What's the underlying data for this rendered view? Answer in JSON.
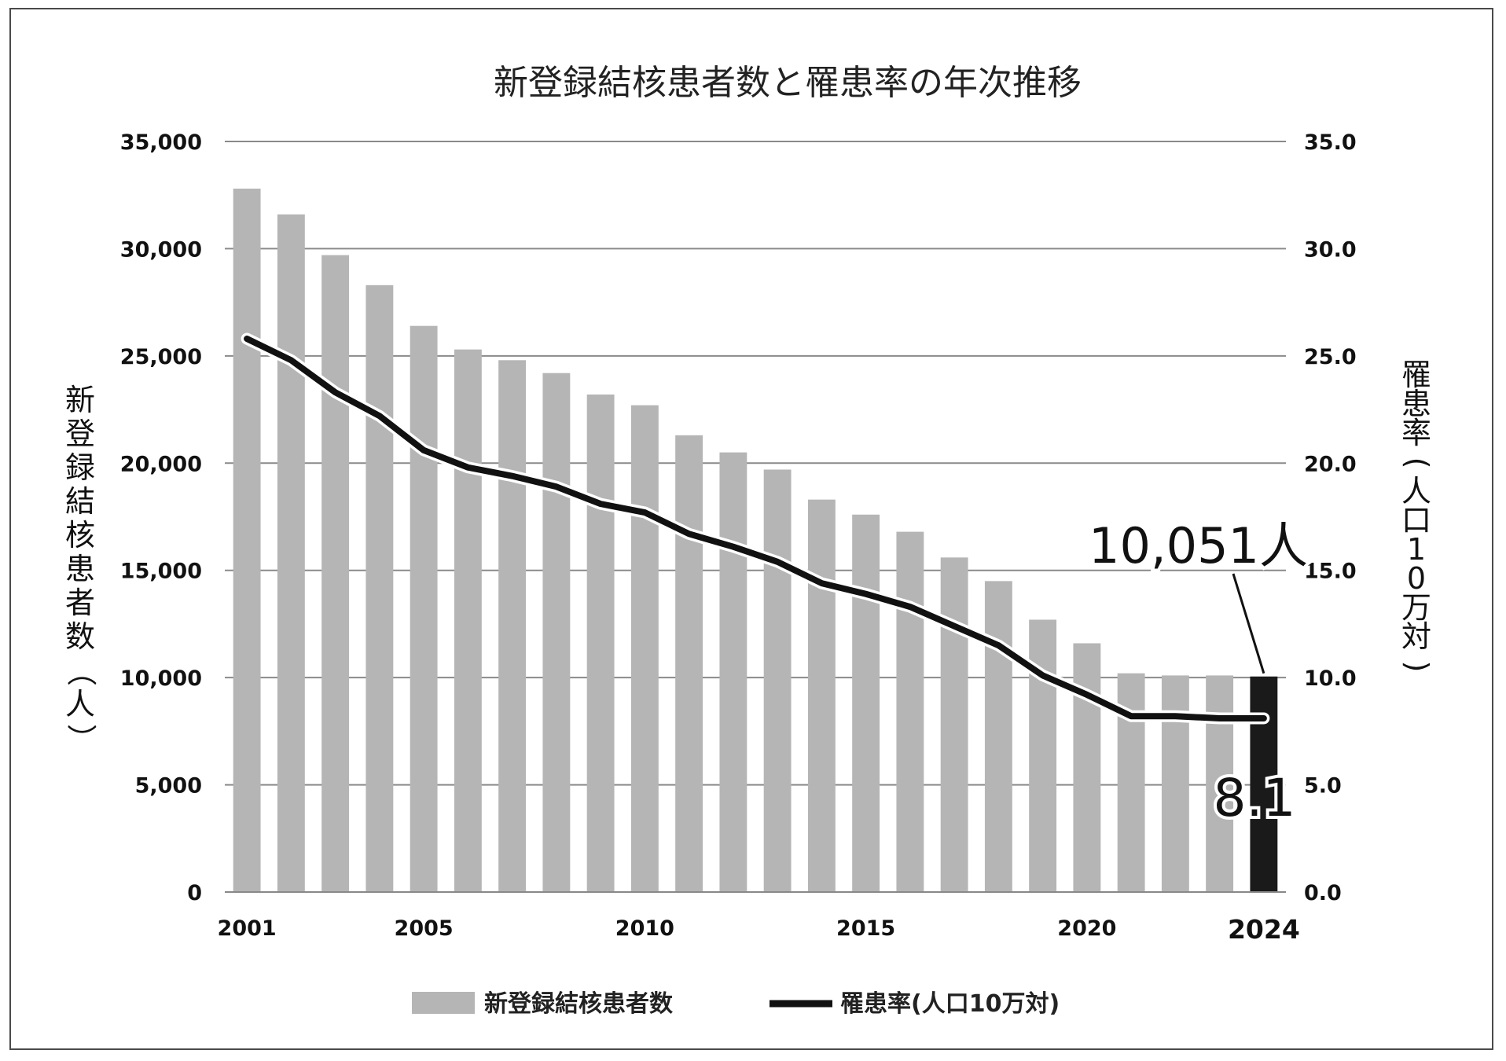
{
  "chart_data": {
    "type": "bar",
    "title": "新登録結核患者数と罹患率の年次推移",
    "x": [
      2001,
      2002,
      2003,
      2004,
      2005,
      2006,
      2007,
      2008,
      2009,
      2010,
      2011,
      2012,
      2013,
      2014,
      2015,
      2016,
      2017,
      2018,
      2019,
      2020,
      2021,
      2022,
      2023,
      2024
    ],
    "x_tick_labels": [
      "2001",
      "2005",
      "2010",
      "2015",
      "2020",
      "2024"
    ],
    "series": [
      {
        "name": "新登録結核患者数",
        "type": "bar",
        "axis": "left",
        "color": "#b5b5b5",
        "highlight_color": "#1a1a1a",
        "values": [
          32800,
          31600,
          29700,
          28300,
          26400,
          25300,
          24800,
          24200,
          23200,
          22700,
          21300,
          20500,
          19700,
          18300,
          17600,
          16800,
          15600,
          14500,
          12700,
          11600,
          10200,
          10100,
          10100,
          10051
        ]
      },
      {
        "name": "罹患率(人口10万対)",
        "type": "line",
        "axis": "right",
        "color": "#111111",
        "values": [
          25.8,
          24.8,
          23.3,
          22.2,
          20.6,
          19.8,
          19.4,
          18.9,
          18.1,
          17.7,
          16.7,
          16.1,
          15.4,
          14.4,
          13.9,
          13.3,
          12.4,
          11.5,
          10.1,
          9.2,
          8.2,
          8.2,
          8.1,
          8.1
        ]
      }
    ],
    "ylabel_left": "新登録結核患者数（人）",
    "ylabel_right": "罹患率(人口10万対)",
    "ylim_left": [
      0,
      35000
    ],
    "ylim_right": [
      0,
      35
    ],
    "yticks_left": [
      "0",
      "5,000",
      "10,000",
      "15,000",
      "20,000",
      "25,000",
      "30,000",
      "35,000"
    ],
    "yticks_right": [
      "0.0",
      "5.0",
      "10.0",
      "15.0",
      "20.0",
      "25.0",
      "30.0",
      "35.0"
    ],
    "grid": true,
    "legend_position": "bottom",
    "annotations": {
      "last_count": "10,051人",
      "last_rate": "8.1"
    }
  }
}
